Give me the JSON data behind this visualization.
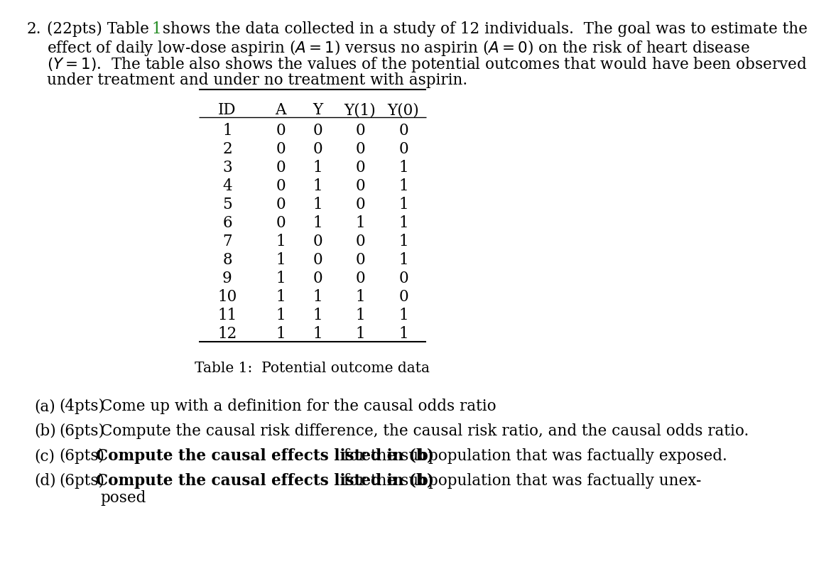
{
  "bg_color": "#ffffff",
  "text_color": "#000000",
  "green_color": "#228B22",
  "table_data": [
    [
      1,
      0,
      0,
      0,
      0
    ],
    [
      2,
      0,
      0,
      0,
      0
    ],
    [
      3,
      0,
      1,
      0,
      1
    ],
    [
      4,
      0,
      1,
      0,
      1
    ],
    [
      5,
      0,
      1,
      0,
      1
    ],
    [
      6,
      0,
      1,
      1,
      1
    ],
    [
      7,
      1,
      0,
      0,
      1
    ],
    [
      8,
      1,
      0,
      0,
      1
    ],
    [
      9,
      1,
      0,
      0,
      0
    ],
    [
      10,
      1,
      1,
      1,
      0
    ],
    [
      11,
      1,
      1,
      1,
      1
    ],
    [
      12,
      1,
      1,
      1,
      1
    ]
  ],
  "col_headers": [
    "ID",
    "A",
    "Y",
    "Y(1)",
    "Y(0)"
  ],
  "table_caption": "Table 1:  Potential outcome data",
  "header_line1_pre": "2.  (22pts) Table ",
  "header_line1_num": "1",
  "header_line1_post": " shows the data collected in a study of 12 individuals.  The goal was to estimate the",
  "header_line2": "effect of daily low-dose aspirin ($A = 1$) versus no aspirin ($A = 0$) on the risk of heart disease",
  "header_line3": "$(Y = 1)$.  The table also shows the values of the potential outcomes that would have been observed",
  "header_line4": "under treatment and under no treatment with aspirin.",
  "q_a_label": "(a)",
  "q_a_pts": "(4pts)",
  "q_a_text": " Come up with a definition for the causal odds ratio",
  "q_b_label": "(b)",
  "q_b_pts": "(6pts)",
  "q_b_text": " Compute the causal risk difference, the causal risk ratio, and the causal odds ratio.",
  "q_c_label": "(c)",
  "q_c_pts": "(6pts)",
  "q_c_bold": "Compute the causal effects listed in (b)",
  "q_c_rest": " for the subpopulation that was factually exposed.",
  "q_d_label": "(d)",
  "q_d_pts": "(6pts)",
  "q_d_bold": "Compute the causal effects listed in (b)",
  "q_d_rest": " for the subpopulation that was factually unex-",
  "q_d_rest2": "posed",
  "indent_d": "      "
}
